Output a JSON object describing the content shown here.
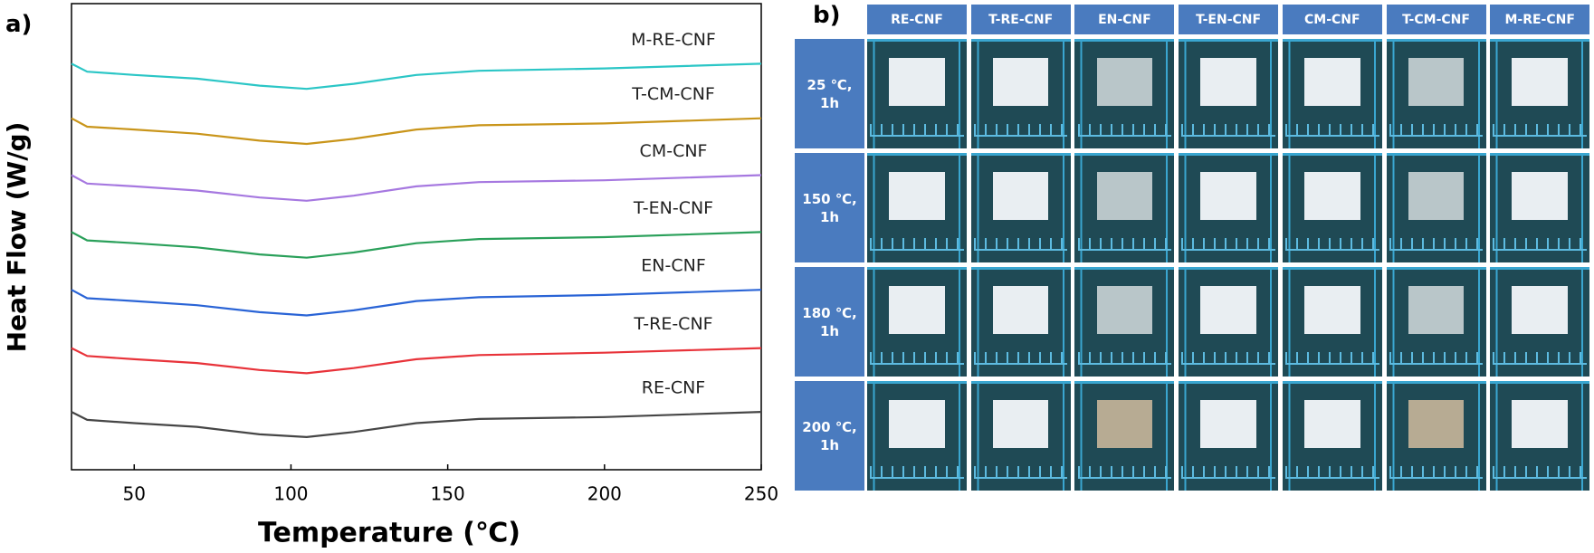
{
  "chart_data": {
    "type": "line",
    "x_label": "Temperature (℃)",
    "y_label": "Heat Flow (W/g)",
    "xlim": [
      30,
      250
    ],
    "xticks": [
      50,
      100,
      150,
      200,
      250
    ],
    "ylim": [
      0,
      100
    ],
    "x": [
      30,
      35,
      50,
      70,
      90,
      105,
      120,
      140,
      160,
      200,
      250
    ],
    "series": [
      {
        "name": "RE-CNF",
        "color": "#464646",
        "values": [
          12.4,
          10.7,
          10.0,
          9.2,
          7.6,
          7.0,
          8.1,
          10.0,
          10.9,
          11.3,
          12.4
        ]
      },
      {
        "name": "T-RE-CNF",
        "color": "#e8333a",
        "values": [
          26.1,
          24.4,
          23.7,
          22.9,
          21.4,
          20.7,
          21.8,
          23.7,
          24.6,
          25.1,
          26.1
        ]
      },
      {
        "name": "EN-CNF",
        "color": "#2a64d6",
        "values": [
          38.6,
          36.8,
          36.2,
          35.3,
          33.8,
          33.1,
          34.2,
          36.2,
          37.0,
          37.5,
          38.6
        ]
      },
      {
        "name": "T-EN-CNF",
        "color": "#2aa05a",
        "values": [
          51.0,
          49.2,
          48.6,
          47.7,
          46.2,
          45.5,
          46.6,
          48.6,
          49.5,
          49.9,
          51.0
        ]
      },
      {
        "name": "CM-CNF",
        "color": "#a678e0",
        "values": [
          63.2,
          61.4,
          60.8,
          59.9,
          58.4,
          57.7,
          58.8,
          60.8,
          61.7,
          62.1,
          63.2
        ]
      },
      {
        "name": "T-CM-CNF",
        "color": "#c9951a",
        "values": [
          75.4,
          73.6,
          73.0,
          72.1,
          70.6,
          69.9,
          71.0,
          73.0,
          73.9,
          74.3,
          75.4
        ]
      },
      {
        "name": "M-RE-CNF",
        "color": "#2bc6c6",
        "values": [
          87.1,
          85.4,
          84.7,
          83.9,
          82.4,
          81.7,
          82.8,
          84.7,
          85.6,
          86.1,
          87.1
        ]
      }
    ]
  },
  "panel_labels": [
    "a)",
    "b)"
  ],
  "photo_grid": {
    "columns": [
      "RE-CNF",
      "T-RE-CNF",
      "EN-CNF",
      "T-EN-CNF",
      "CM-CNF",
      "T-CM-CNF",
      "M-RE-CNF"
    ],
    "rows": [
      "25 ℃, 1h",
      "150 ℃, 1h",
      "180 ℃, 1h",
      "200 ℃, 1h"
    ]
  }
}
